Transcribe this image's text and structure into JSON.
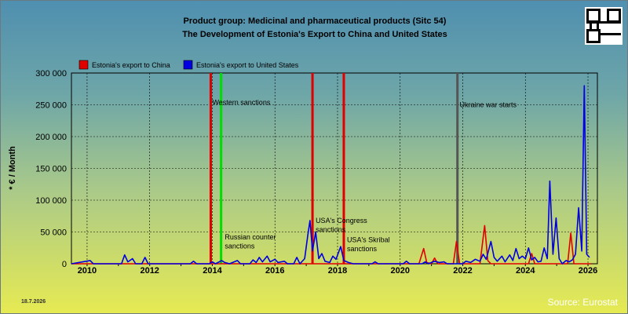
{
  "header": {
    "title_line1": "Product group: Medicinal and pharmaceutical products (Sitc 54)",
    "title_line2": "The Development of Estonia's Export to  China and United States"
  },
  "footer": {
    "date": "18.7.2026",
    "source": "Source: Eurostat"
  },
  "chart_data": {
    "type": "line",
    "ylabel": "* € / Month",
    "ylim": [
      0,
      300000
    ],
    "xlim": [
      2009.5,
      2026.3
    ],
    "y_ticks": [
      {
        "value": 0,
        "label": "0"
      },
      {
        "value": 50000,
        "label": "50 000"
      },
      {
        "value": 100000,
        "label": "100 000"
      },
      {
        "value": 150000,
        "label": "150 000"
      },
      {
        "value": 200000,
        "label": "200 000"
      },
      {
        "value": 250000,
        "label": "250 000"
      },
      {
        "value": 300000,
        "label": "300 000"
      }
    ],
    "x_ticks": [
      {
        "value": 2010,
        "label": "2010"
      },
      {
        "value": 2012,
        "label": "2012"
      },
      {
        "value": 2014,
        "label": "2014"
      },
      {
        "value": 2016,
        "label": "2016"
      },
      {
        "value": 2018,
        "label": "2018"
      },
      {
        "value": 2020,
        "label": "2020"
      },
      {
        "value": 2022,
        "label": "2022"
      },
      {
        "value": 2024,
        "label": "2024"
      },
      {
        "value": 2026,
        "label": "2026"
      }
    ],
    "grid": true,
    "legend_position": "top-left",
    "series": [
      {
        "name": "Estonia's export to China",
        "color": "#e00000",
        "points": [
          [
            2009.5,
            0
          ],
          [
            2020.6,
            0
          ],
          [
            2020.75,
            24000
          ],
          [
            2020.85,
            2000
          ],
          [
            2021.0,
            0
          ],
          [
            2021.1,
            9000
          ],
          [
            2021.2,
            0
          ],
          [
            2021.7,
            0
          ],
          [
            2021.8,
            35000
          ],
          [
            2021.9,
            0
          ],
          [
            2022.55,
            0
          ],
          [
            2022.7,
            60000
          ],
          [
            2022.8,
            5000
          ],
          [
            2022.9,
            0
          ],
          [
            2024.1,
            0
          ],
          [
            2024.2,
            16000
          ],
          [
            2024.3,
            0
          ],
          [
            2025.35,
            0
          ],
          [
            2025.45,
            48000
          ],
          [
            2025.55,
            0
          ],
          [
            2026.1,
            0
          ]
        ]
      },
      {
        "name": "Estonia's export to United States",
        "color": "#0000e0",
        "points": [
          [
            2009.5,
            0
          ],
          [
            2010.1,
            5000
          ],
          [
            2010.2,
            0
          ],
          [
            2011.1,
            0
          ],
          [
            2011.2,
            14000
          ],
          [
            2011.3,
            3000
          ],
          [
            2011.45,
            8000
          ],
          [
            2011.55,
            0
          ],
          [
            2011.75,
            0
          ],
          [
            2011.85,
            10000
          ],
          [
            2011.95,
            0
          ],
          [
            2013.3,
            0
          ],
          [
            2013.4,
            4000
          ],
          [
            2013.5,
            0
          ],
          [
            2013.9,
            0
          ],
          [
            2014.0,
            3000
          ],
          [
            2014.1,
            0
          ],
          [
            2014.3,
            5000
          ],
          [
            2014.4,
            2000
          ],
          [
            2014.55,
            0
          ],
          [
            2014.8,
            5000
          ],
          [
            2014.9,
            0
          ],
          [
            2015.2,
            0
          ],
          [
            2015.3,
            6000
          ],
          [
            2015.4,
            2000
          ],
          [
            2015.5,
            10000
          ],
          [
            2015.6,
            3000
          ],
          [
            2015.75,
            12000
          ],
          [
            2015.85,
            3000
          ],
          [
            2016.0,
            7000
          ],
          [
            2016.1,
            2000
          ],
          [
            2016.3,
            4000
          ],
          [
            2016.4,
            0
          ],
          [
            2016.6,
            0
          ],
          [
            2016.7,
            10000
          ],
          [
            2016.8,
            0
          ],
          [
            2016.95,
            8000
          ],
          [
            2017.05,
            45000
          ],
          [
            2017.12,
            68000
          ],
          [
            2017.2,
            20000
          ],
          [
            2017.3,
            50000
          ],
          [
            2017.4,
            8000
          ],
          [
            2017.5,
            16000
          ],
          [
            2017.6,
            4000
          ],
          [
            2017.75,
            2000
          ],
          [
            2017.85,
            12000
          ],
          [
            2017.95,
            7000
          ],
          [
            2018.1,
            27000
          ],
          [
            2018.2,
            5000
          ],
          [
            2018.35,
            2000
          ],
          [
            2018.5,
            0
          ],
          [
            2019.1,
            0
          ],
          [
            2019.2,
            3000
          ],
          [
            2019.3,
            0
          ],
          [
            2020.1,
            0
          ],
          [
            2020.2,
            4000
          ],
          [
            2020.3,
            0
          ],
          [
            2020.7,
            0
          ],
          [
            2020.8,
            3000
          ],
          [
            2020.9,
            0
          ],
          [
            2021.1,
            4000
          ],
          [
            2021.25,
            2000
          ],
          [
            2021.4,
            3000
          ],
          [
            2021.5,
            0
          ],
          [
            2022.0,
            0
          ],
          [
            2022.1,
            4000
          ],
          [
            2022.25,
            2000
          ],
          [
            2022.4,
            7000
          ],
          [
            2022.55,
            4000
          ],
          [
            2022.65,
            15000
          ],
          [
            2022.75,
            7000
          ],
          [
            2022.9,
            35000
          ],
          [
            2023.0,
            10000
          ],
          [
            2023.1,
            4000
          ],
          [
            2023.25,
            12000
          ],
          [
            2023.35,
            3000
          ],
          [
            2023.5,
            14000
          ],
          [
            2023.6,
            5000
          ],
          [
            2023.7,
            24000
          ],
          [
            2023.8,
            8000
          ],
          [
            2023.9,
            12000
          ],
          [
            2024.0,
            8000
          ],
          [
            2024.1,
            25000
          ],
          [
            2024.2,
            6000
          ],
          [
            2024.3,
            10000
          ],
          [
            2024.4,
            3000
          ],
          [
            2024.5,
            4000
          ],
          [
            2024.6,
            25000
          ],
          [
            2024.7,
            8000
          ],
          [
            2024.78,
            130000
          ],
          [
            2024.88,
            15000
          ],
          [
            2024.98,
            72000
          ],
          [
            2025.08,
            8000
          ],
          [
            2025.18,
            0
          ],
          [
            2025.3,
            5000
          ],
          [
            2025.4,
            3000
          ],
          [
            2025.5,
            6000
          ],
          [
            2025.6,
            15000
          ],
          [
            2025.7,
            88000
          ],
          [
            2025.8,
            20000
          ],
          [
            2025.88,
            280000
          ],
          [
            2025.96,
            15000
          ],
          [
            2026.05,
            10000
          ]
        ]
      }
    ],
    "events": [
      {
        "x": 2013.95,
        "color": "#e00000",
        "label": ""
      },
      {
        "x": 2014.28,
        "color": "#00dd00",
        "label": "Western sanctions"
      },
      {
        "x": 2017.2,
        "color": "#e00000",
        "label": "USA's Congress sanctions"
      },
      {
        "x": 2018.2,
        "color": "#e00000",
        "label": "USA's Skribal sanctions"
      },
      {
        "x": 2021.83,
        "color": "#555555",
        "label": "Ukraine war starts"
      }
    ],
    "annotations": [
      {
        "text": "Western sanctions",
        "x": 2014.0,
        "y": 250000
      },
      {
        "text": "Russian counter",
        "x": 2014.4,
        "y": 38000
      },
      {
        "text": "sanctions",
        "x": 2014.4,
        "y": 24000
      },
      {
        "text": "USA's Congress",
        "x": 2017.3,
        "y": 64000
      },
      {
        "text": "sanctions",
        "x": 2017.3,
        "y": 50000
      },
      {
        "text": "USA's Skribal",
        "x": 2018.3,
        "y": 34000
      },
      {
        "text": "sanctions",
        "x": 2018.3,
        "y": 20000
      },
      {
        "text": "Ukraine war starts",
        "x": 2021.9,
        "y": 246000
      }
    ]
  }
}
